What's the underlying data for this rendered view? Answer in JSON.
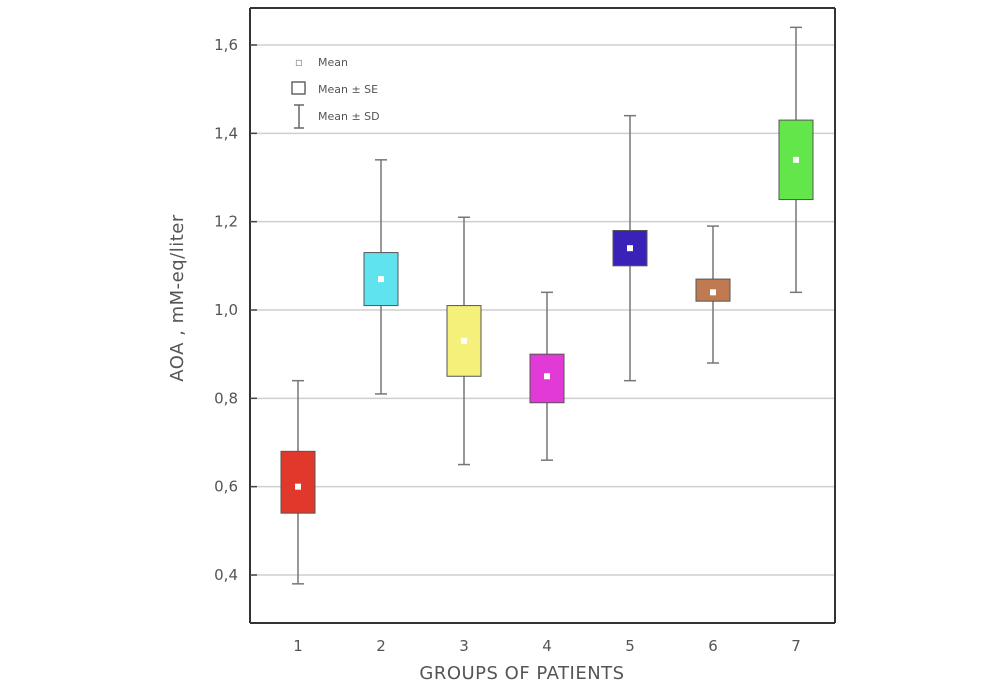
{
  "chart_data": {
    "type": "box",
    "xlabel": "GROUPS OF PATIENTS",
    "ylabel": "AOA , mM-eq/liter",
    "ylim": [
      0.35,
      1.7
    ],
    "yticks": [
      0.4,
      0.6,
      0.8,
      1.0,
      1.2,
      1.4,
      1.6
    ],
    "ytick_labels": [
      "0,4",
      "0,6",
      "0,8",
      "1,0",
      "1,2",
      "1,4",
      "1,6"
    ],
    "categories": [
      "1",
      "2",
      "3",
      "4",
      "5",
      "6",
      "7"
    ],
    "grid": true,
    "legend_position": "top-left",
    "legend": [
      "Mean",
      "Mean ± SE",
      "Mean ± SD"
    ],
    "groups": [
      {
        "category": "1",
        "mean": 0.6,
        "se_low": 0.54,
        "se_high": 0.68,
        "sd_low": 0.38,
        "sd_high": 0.84,
        "color": "#e0392b"
      },
      {
        "category": "2",
        "mean": 1.07,
        "se_low": 1.01,
        "se_high": 1.13,
        "sd_low": 0.81,
        "sd_high": 1.34,
        "color": "#5fe3ee"
      },
      {
        "category": "3",
        "mean": 0.93,
        "se_low": 0.85,
        "se_high": 1.01,
        "sd_low": 0.65,
        "sd_high": 1.21,
        "color": "#f4f07a"
      },
      {
        "category": "4",
        "mean": 0.85,
        "se_low": 0.79,
        "se_high": 0.9,
        "sd_low": 0.66,
        "sd_high": 1.04,
        "color": "#e23ad6"
      },
      {
        "category": "5",
        "mean": 1.14,
        "se_low": 1.1,
        "se_high": 1.18,
        "sd_low": 0.84,
        "sd_high": 1.44,
        "color": "#3a22b8"
      },
      {
        "category": "6",
        "mean": 1.04,
        "se_low": 1.02,
        "se_high": 1.07,
        "sd_low": 0.88,
        "sd_high": 1.19,
        "color": "#c07a52"
      },
      {
        "category": "7",
        "mean": 1.34,
        "se_low": 1.25,
        "se_high": 1.43,
        "sd_low": 1.04,
        "sd_high": 1.64,
        "color": "#62e64a"
      }
    ]
  }
}
